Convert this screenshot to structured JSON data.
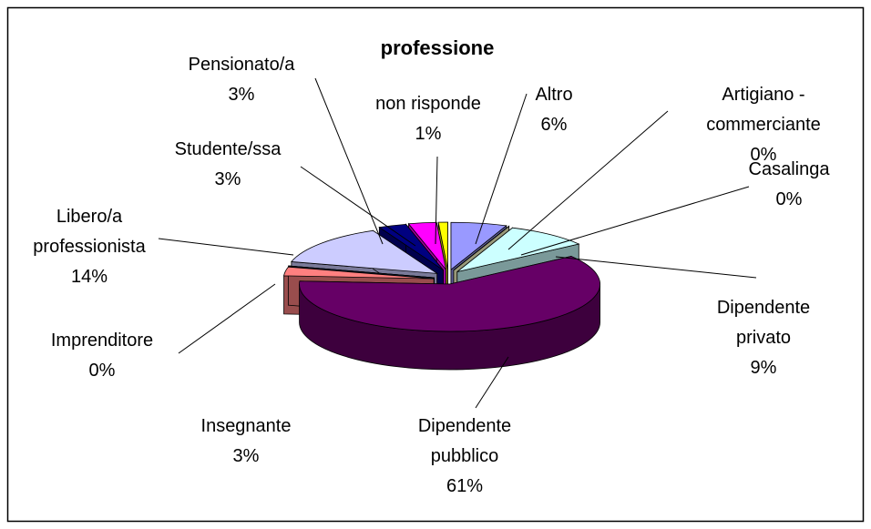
{
  "chart_data": {
    "type": "pie",
    "title": "professione",
    "categories": [
      "Altro",
      "Artigiano - commerciante",
      "Casalinga",
      "Dipendente privato",
      "Dipendente pubblico",
      "Insegnante",
      "Imprenditore",
      "Libero/a professionista",
      "Studente/ssa",
      "Pensionato/a",
      "non risponde"
    ],
    "values": [
      6,
      0,
      0,
      9,
      61,
      3,
      0,
      14,
      3,
      3,
      1
    ],
    "value_labels": [
      "6%",
      "0%",
      "0%",
      "9%",
      "61%",
      "3%",
      "0%",
      "14%",
      "3%",
      "3%",
      "1%"
    ],
    "colors": [
      "#9999ff",
      "#993366",
      "#ffffcc",
      "#ccffff",
      "#660066",
      "#ff8080",
      "#0066cc",
      "#ccccff",
      "#000080",
      "#ff00ff",
      "#ffff00"
    ]
  }
}
